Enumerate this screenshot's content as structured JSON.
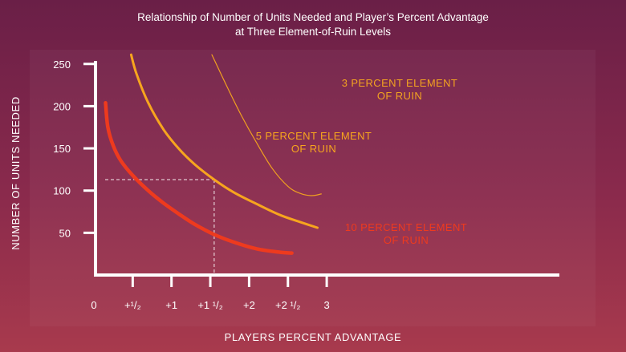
{
  "chart_data": {
    "type": "line",
    "title_lines": [
      "Relationship of Number of Units Needed and Player’s Percent Advantage",
      "at Three Element-of-Ruin Levels"
    ],
    "xlabel": "PLAYERS PERCENT ADVANTAGE",
    "ylabel": "NUMBER OF UNITS NEEDED",
    "xlim": [
      0,
      3
    ],
    "ylim": [
      0,
      250
    ],
    "x_ticks": [
      {
        "value": 0,
        "label": "0"
      },
      {
        "value": 0.5,
        "label": "+¹/₂"
      },
      {
        "value": 1,
        "label": "+1"
      },
      {
        "value": 1.5,
        "label": "+1 ¹/₂"
      },
      {
        "value": 2,
        "label": "+2"
      },
      {
        "value": 2.5,
        "label": "+2 ¹/₂"
      },
      {
        "value": 3,
        "label": "3"
      }
    ],
    "y_ticks": [
      {
        "value": 50,
        "label": "50"
      },
      {
        "value": 100,
        "label": "100"
      },
      {
        "value": 150,
        "label": "150"
      },
      {
        "value": 200,
        "label": "200"
      },
      {
        "value": 250,
        "label": "250"
      }
    ],
    "series": [
      {
        "name": "3 PERCENT ELEMENT OF RUIN",
        "label_lines": [
          "3 PERCENT ELEMENT",
          "OF RUIN"
        ],
        "color": "#f0a020",
        "x": [
          1.52,
          1.7,
          1.9,
          2.1,
          2.3,
          2.5,
          2.65,
          2.8,
          2.93
        ],
        "y": [
          261,
          226,
          189,
          156,
          126,
          105,
          97,
          94,
          96
        ]
      },
      {
        "name": "5 PERCENT ELEMENT OF RUIN",
        "label_lines": [
          "5 PERCENT ELEMENT",
          "OF RUIN"
        ],
        "color": "#f7a51e",
        "x": [
          0.48,
          0.55,
          0.7,
          0.9,
          1.1,
          1.3,
          1.55,
          1.8,
          2.1,
          2.4,
          2.65,
          2.88
        ],
        "y": [
          261,
          238,
          204,
          172,
          149,
          131,
          113,
          98,
          84,
          71,
          63,
          56
        ]
      },
      {
        "name": "10 PERCENT ELEMENT OF RUIN",
        "label_lines": [
          "10 PERCENT ELEMENT",
          "OF RUIN"
        ],
        "color": "#ee3a1e",
        "x": [
          0.15,
          0.18,
          0.25,
          0.35,
          0.5,
          0.7,
          0.9,
          1.1,
          1.3,
          1.55,
          1.8,
          2.1,
          2.4,
          2.55
        ],
        "y": [
          204,
          175,
          153,
          135,
          118,
          100,
          85,
          72,
          60,
          48,
          39,
          31,
          27,
          26
        ]
      }
    ],
    "reference_point": {
      "x": 1.55,
      "y": 113
    }
  }
}
